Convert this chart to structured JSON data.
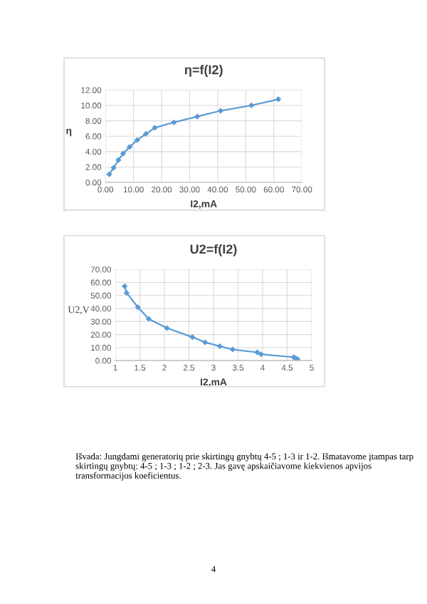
{
  "chart_data": [
    {
      "type": "line",
      "title": "η=f(I2)",
      "xlabel": "I2,mA",
      "ylabel": "η",
      "series": [
        {
          "color": "#5b9bd5",
          "x": [
            1.35,
            2.9,
            4.6,
            6.3,
            8.6,
            11.3,
            14.4,
            17.6,
            24.4,
            32.7,
            41,
            52,
            61.6
          ],
          "values": [
            1.05,
            1.9,
            2.9,
            3.75,
            4.6,
            5.5,
            6.3,
            7.1,
            7.8,
            8.55,
            9.3,
            10.0,
            10.8
          ]
        }
      ],
      "xlim": [
        0,
        70
      ],
      "xticks": [
        {
          "value": 0,
          "label": "0.00"
        },
        {
          "value": 10,
          "label": "10.00"
        },
        {
          "value": 20,
          "label": "20.00"
        },
        {
          "value": 30,
          "label": "30.00"
        },
        {
          "value": 40,
          "label": "40.00"
        },
        {
          "value": 50,
          "label": "50.00"
        },
        {
          "value": 60,
          "label": "60.00"
        },
        {
          "value": 70,
          "label": "70.00"
        }
      ],
      "ylim": [
        0,
        12
      ],
      "yticks": [
        {
          "value": 0,
          "label": "0.00"
        },
        {
          "value": 2,
          "label": "2.00"
        },
        {
          "value": 4,
          "label": "4.00"
        },
        {
          "value": 6,
          "label": "6.00"
        },
        {
          "value": 8,
          "label": "8.00"
        },
        {
          "value": 10,
          "label": "10.00"
        },
        {
          "value": 12,
          "label": "12.00"
        }
      ],
      "grid": true,
      "marker": "diamond",
      "line_style": "solid"
    },
    {
      "type": "line",
      "title": "U2=f(I2)",
      "xlabel": "I2,mA",
      "ylabel": "U2,V",
      "series": [
        {
          "color": "#5b9bd5",
          "x": [
            1.19,
            1.23,
            1.46,
            1.68,
            2.05,
            2.57,
            2.83,
            3.13,
            3.39,
            3.89,
            3.97,
            4.63,
            4.67,
            4.71
          ],
          "values": [
            57,
            52,
            41,
            32,
            25,
            18,
            14,
            11,
            8.5,
            6.3,
            4.8,
            2.6,
            1.8,
            1.1
          ]
        }
      ],
      "xlim": [
        1,
        5
      ],
      "xticks": [
        1,
        1.5,
        2,
        2.5,
        3,
        3.5,
        4,
        4.5,
        5
      ],
      "ylim": [
        0,
        70
      ],
      "yticks": [
        {
          "value": 0,
          "label": "0.00"
        },
        {
          "value": 10,
          "label": "10.00"
        },
        {
          "value": 20,
          "label": "20.00"
        },
        {
          "value": 30,
          "label": "30.00"
        },
        {
          "value": 40,
          "label": "40.00"
        },
        {
          "value": 50,
          "label": "50.00"
        },
        {
          "value": 60,
          "label": "60.00"
        },
        {
          "value": 70,
          "label": "70.00"
        }
      ],
      "grid": true,
      "marker": "diamond",
      "line_style": "solid",
      "annotations": [
        "Išvada: Jungdami generatorių prie skirtingų gnybtų 4-5 ; 1-3 ir 1-2. Išmatavome įtampas tarp skirtingų gnybtų: 4-5 ; 1-3 ; 1-2 ; 2-3. Jas gavę apskaičiavome kiekvienos apvijos transformacijos koeficientus.",
        "4"
      ]
    }
  ]
}
